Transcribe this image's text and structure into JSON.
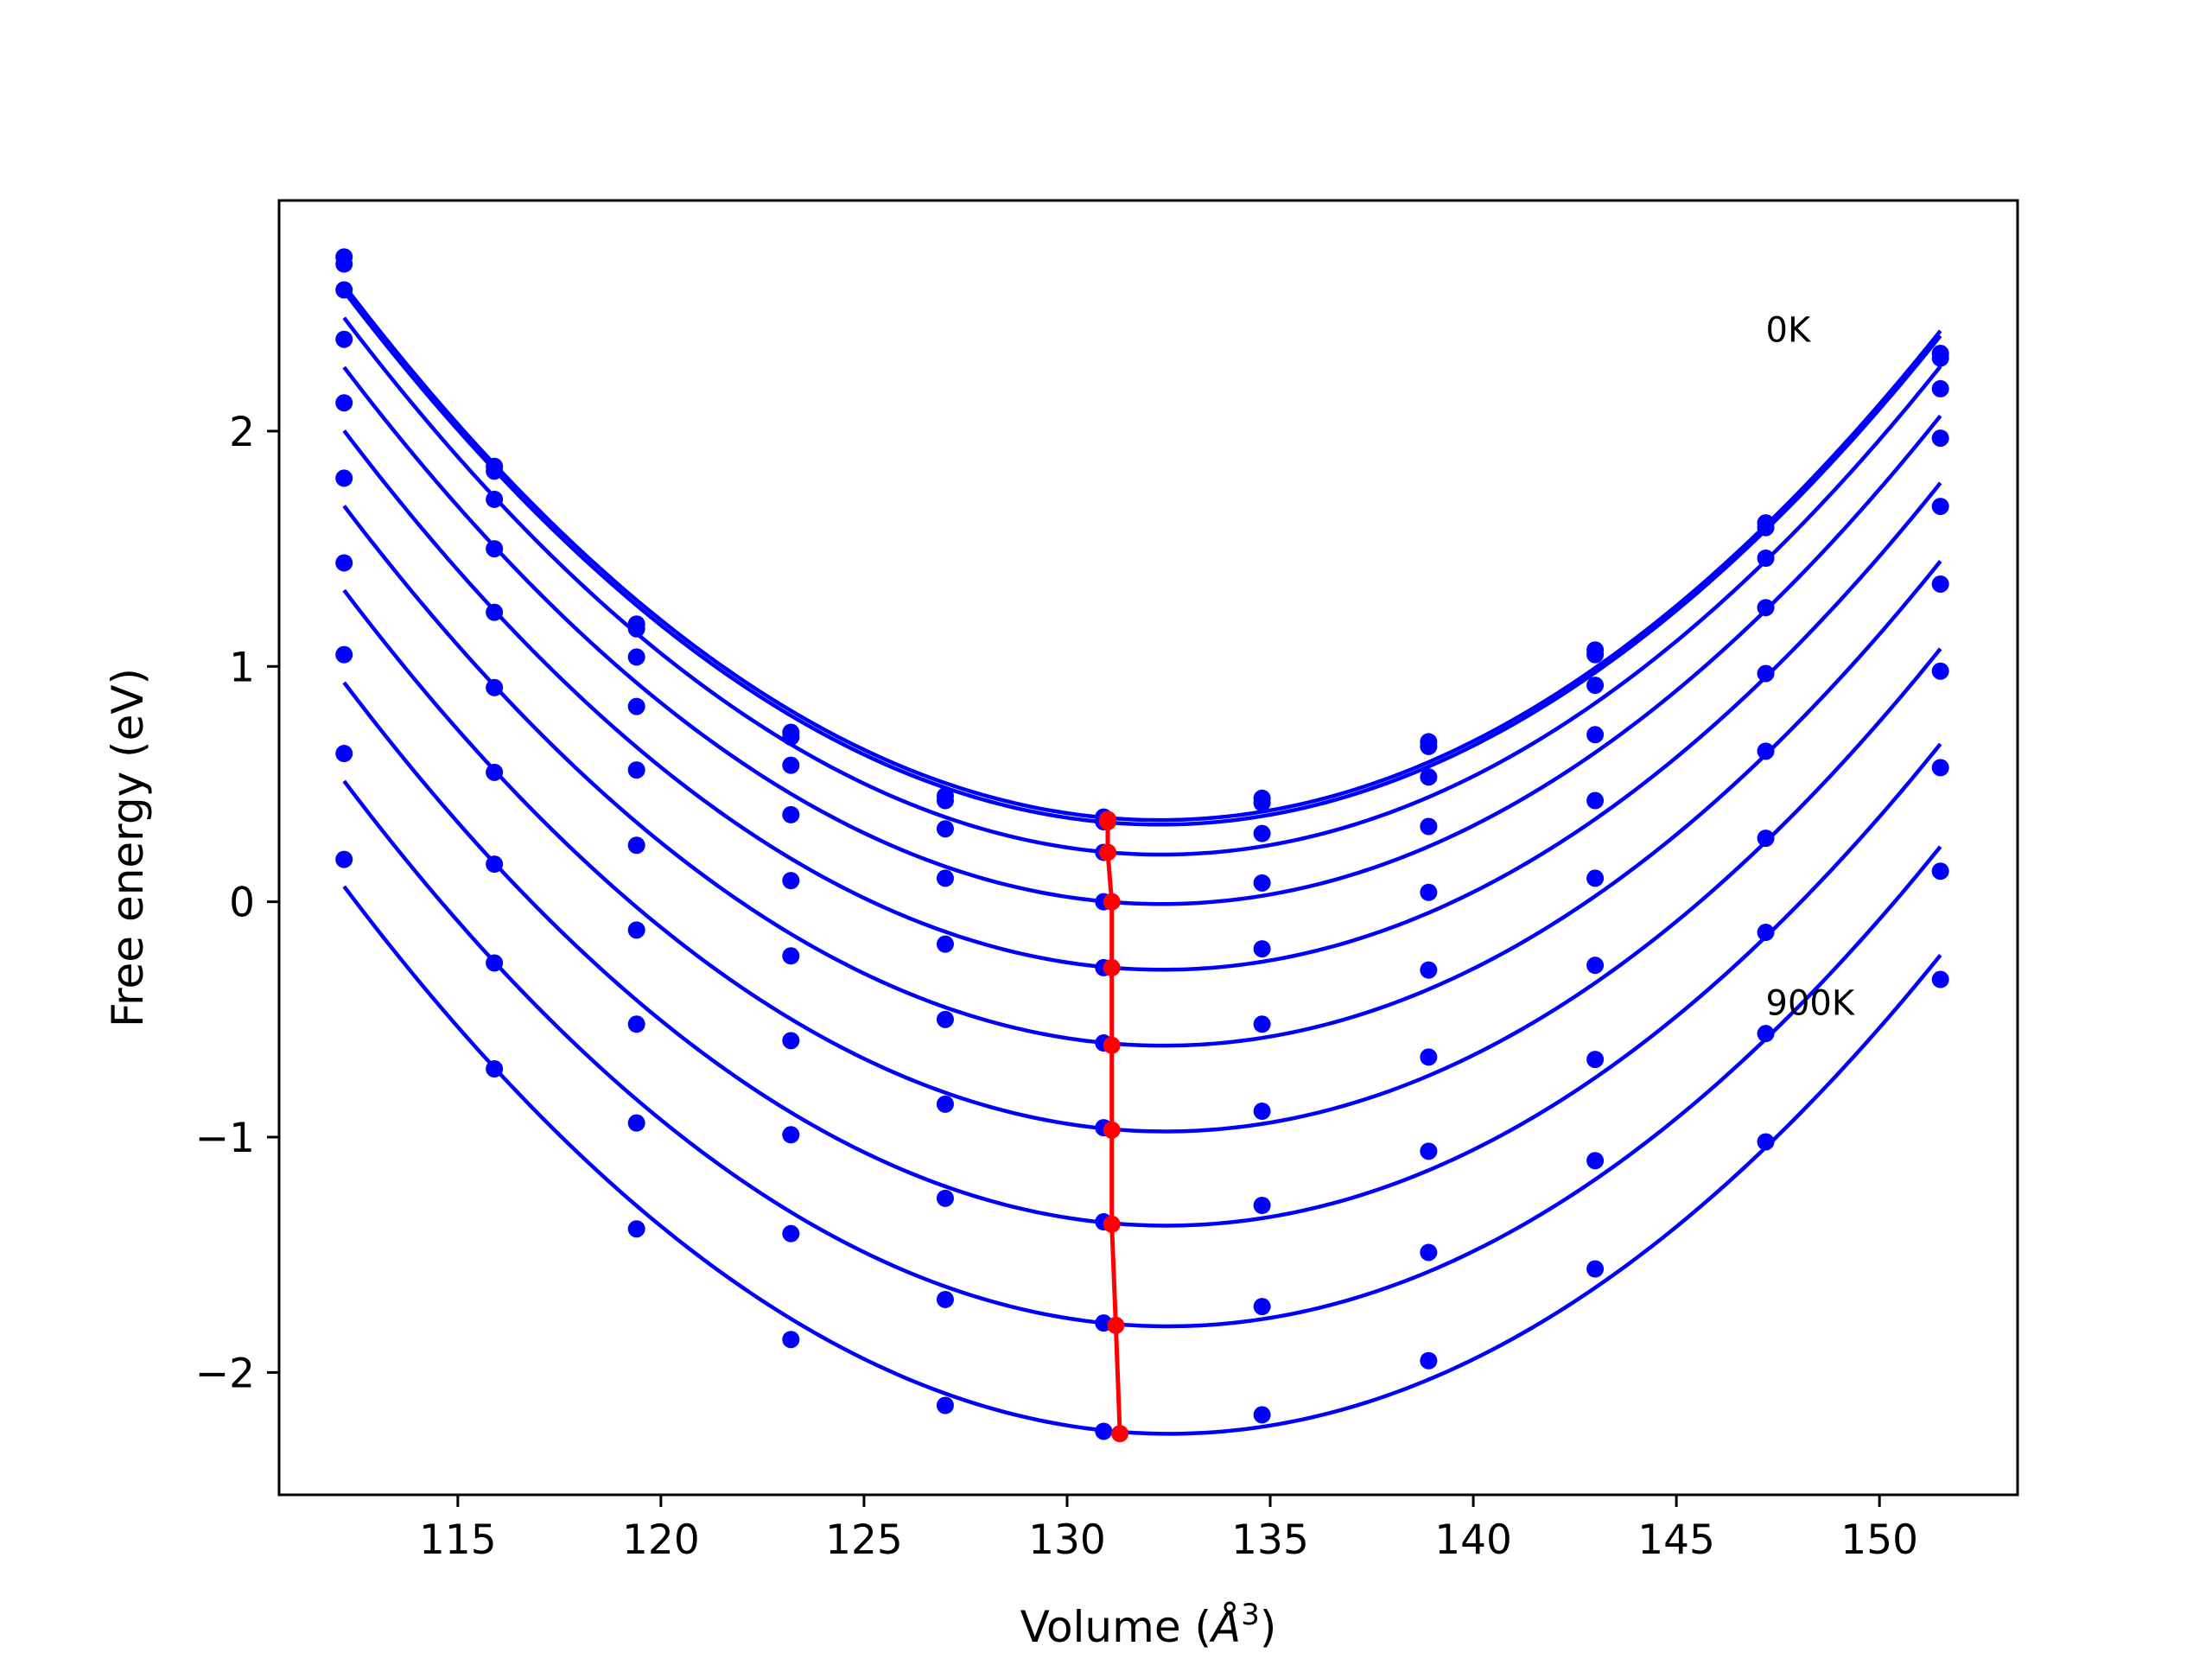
{
  "chart_data": {
    "type": "line",
    "title": "",
    "xlabel": "Volume (",
    "xlabel_symbol": "Å",
    "xlabel_exp": "3",
    "xlabel_close": ")",
    "ylabel": "Free energy (eV)",
    "xlim": [
      110.6,
      153.4
    ],
    "ylim": [
      -2.52,
      2.98
    ],
    "grid": false,
    "legend": "none",
    "colors": {
      "series": "#0000ff",
      "minima": "#ff0000"
    },
    "xticks": [
      115,
      120,
      125,
      130,
      135,
      140,
      145,
      150
    ],
    "xtick_labels": [
      "115",
      "120",
      "125",
      "130",
      "135",
      "140",
      "145",
      "150"
    ],
    "yticks": [
      -2,
      -1,
      0,
      1,
      2
    ],
    "ytick_labels": [
      "−2",
      "−1",
      "0",
      "1",
      "2"
    ],
    "x": [
      112.2,
      115.9,
      119.4,
      123.2,
      127.0,
      130.9,
      134.8,
      138.9,
      143.0,
      147.2,
      151.5
    ],
    "series": [
      {
        "values": [
          2.74,
          1.85,
          1.18,
          0.72,
          0.45,
          0.36,
          0.44,
          0.68,
          1.07,
          1.61,
          2.33
        ]
      },
      {
        "values": [
          2.71,
          1.83,
          1.16,
          0.7,
          0.43,
          0.34,
          0.42,
          0.66,
          1.05,
          1.59,
          2.31
        ]
      },
      {
        "values": [
          2.6,
          1.71,
          1.04,
          0.58,
          0.31,
          0.21,
          0.29,
          0.53,
          0.92,
          1.46,
          2.18
        ]
      },
      {
        "values": [
          2.39,
          1.5,
          0.83,
          0.37,
          0.1,
          0.0,
          0.08,
          0.32,
          0.71,
          1.25,
          1.97
        ]
      },
      {
        "values": [
          2.12,
          1.23,
          0.56,
          0.09,
          -0.18,
          -0.28,
          -0.2,
          0.04,
          0.43,
          0.97,
          1.68
        ]
      },
      {
        "values": [
          1.8,
          0.91,
          0.24,
          -0.23,
          -0.5,
          -0.6,
          -0.52,
          -0.29,
          0.1,
          0.64,
          1.35
        ]
      },
      {
        "values": [
          1.44,
          0.55,
          -0.12,
          -0.59,
          -0.86,
          -0.96,
          -0.89,
          -0.66,
          -0.27,
          0.27,
          0.98
        ]
      },
      {
        "values": [
          1.05,
          0.16,
          -0.52,
          -0.99,
          -1.26,
          -1.36,
          -1.29,
          -1.06,
          -0.67,
          -0.13,
          0.57
        ]
      },
      {
        "values": [
          0.63,
          -0.26,
          -0.94,
          -1.41,
          -1.69,
          -1.79,
          -1.72,
          -1.49,
          -1.1,
          -0.56,
          0.13
        ]
      },
      {
        "values": [
          0.18,
          -0.71,
          -1.39,
          -1.86,
          -2.14,
          -2.25,
          -2.18,
          -1.95,
          -1.56,
          -1.02,
          -0.33
        ]
      }
    ],
    "minima": {
      "x": [
        131.0,
        131.0,
        131.0,
        131.1,
        131.1,
        131.1,
        131.1,
        131.1,
        131.2,
        131.3
      ],
      "y": [
        0.35,
        0.34,
        0.21,
        0.0,
        -0.28,
        -0.61,
        -0.97,
        -1.37,
        -1.8,
        -2.26
      ]
    },
    "annotations": [
      {
        "text": "0K",
        "x": 147.2,
        "y": 2.38
      },
      {
        "text": "900K",
        "x": 147.2,
        "y": -0.48
      }
    ]
  }
}
